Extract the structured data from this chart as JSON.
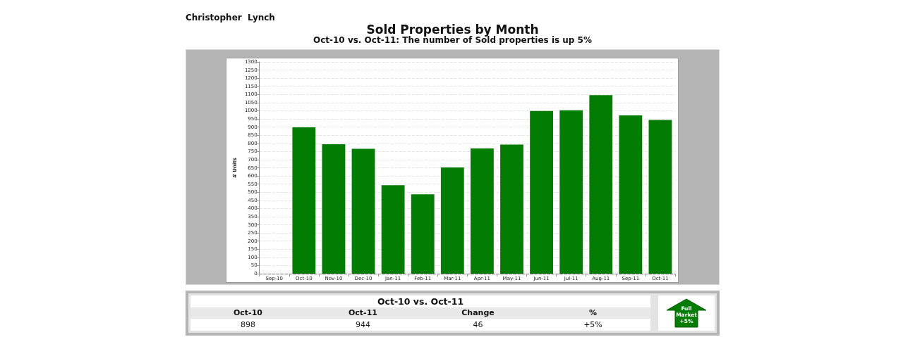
{
  "chart_data": [
    {
      "type": "bar",
      "title": "Sold Properties by Month",
      "subtitle": "Oct-10 vs. Oct-11: The number of Sold properties is up 5%",
      "ylabel": "# Units",
      "annotations": [
        "Christopher  Lynch"
      ],
      "categories": [
        "Sep-10",
        "Oct-10",
        "Nov-10",
        "Dec-10",
        "Jan-11",
        "Feb-11",
        "Mar-11",
        "Apr-11",
        "May-11",
        "Jun-11",
        "Jul-11",
        "Aug-11",
        "Sep-11",
        "Oct-11"
      ],
      "values": [
        null,
        898,
        795,
        767,
        543,
        487,
        652,
        769,
        792,
        999,
        1003,
        1096,
        972,
        944
      ],
      "color": "#037c03",
      "ylim": [
        0,
        1300
      ],
      "yticks": [
        0,
        50,
        100,
        150,
        200,
        250,
        300,
        350,
        400,
        450,
        500,
        550,
        600,
        650,
        700,
        750,
        800,
        850,
        900,
        950,
        1000,
        1050,
        1100,
        1150,
        1200,
        1250,
        1300
      ],
      "grid": "y"
    },
    {
      "type": "other",
      "title": "Oct-10 vs. Oct-11",
      "categories": [
        "Oct-10",
        "Oct-11",
        "Change",
        "%"
      ],
      "value_labels": [
        "898",
        "944",
        "46",
        "+5%"
      ],
      "annotations": [
        "Full Market +5%"
      ]
    }
  ]
}
